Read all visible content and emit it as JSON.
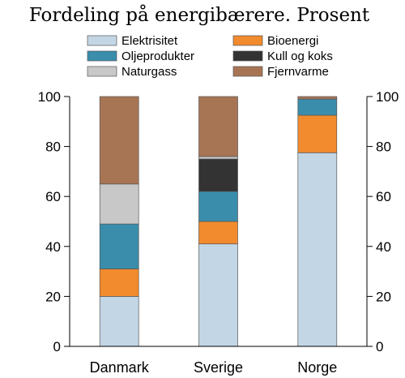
{
  "chart_data": {
    "type": "bar",
    "stacked": true,
    "title": "Fordeling på energibærere. Prosent",
    "xlabel": "",
    "ylabel": "",
    "ylim": [
      0,
      100
    ],
    "yticks": [
      0,
      20,
      40,
      60,
      80,
      100
    ],
    "y_axis_both_sides": true,
    "grid": false,
    "legend_position": "top",
    "categories": [
      "Danmark",
      "Sverige",
      "Norge"
    ],
    "series": [
      {
        "name": "Elektrisitet",
        "color": "#c3d6e5",
        "values": [
          20,
          41,
          77.5
        ]
      },
      {
        "name": "Bioenergi",
        "color": "#f28a2e",
        "values": [
          11,
          9,
          15
        ]
      },
      {
        "name": "Oljeprodukter",
        "color": "#3a8dab",
        "values": [
          18,
          12,
          6.5
        ]
      },
      {
        "name": "Kull og koks",
        "color": "#333333",
        "values": [
          0,
          13,
          0
        ]
      },
      {
        "name": "Naturgass",
        "color": "#c8c8c8",
        "values": [
          16,
          1,
          0
        ]
      },
      {
        "name": "Fjernvarme",
        "color": "#a87554",
        "values": [
          35,
          24,
          1
        ]
      }
    ],
    "legend_order": [
      "Elektrisitet",
      "Bioenergi",
      "Oljeprodukter",
      "Kull og koks",
      "Naturgass",
      "Fjernvarme"
    ]
  }
}
